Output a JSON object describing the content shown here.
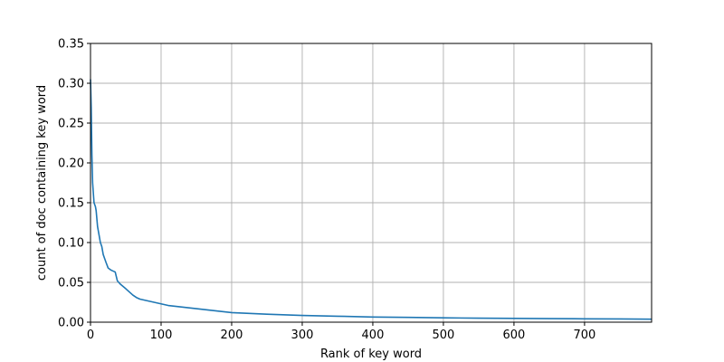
{
  "chart_data": {
    "type": "line",
    "title": "",
    "xlabel": "Rank of key word",
    "ylabel": "count of doc containing key word",
    "xlim": [
      0,
      795
    ],
    "ylim": [
      0,
      0.35
    ],
    "x_ticks": [
      0,
      100,
      200,
      300,
      400,
      500,
      600,
      700
    ],
    "x_tick_labels": [
      "0",
      "100",
      "200",
      "300",
      "400",
      "500",
      "600",
      "700"
    ],
    "y_ticks": [
      0.0,
      0.05,
      0.1,
      0.15,
      0.2,
      0.25,
      0.3,
      0.35
    ],
    "y_tick_labels": [
      "0.00",
      "0.05",
      "0.10",
      "0.15",
      "0.20",
      "0.25",
      "0.30",
      "0.35"
    ],
    "grid": true,
    "legend": "none",
    "series": [
      {
        "color": "#1f77b4",
        "x": [
          0,
          1,
          2,
          3,
          5,
          7,
          8,
          10,
          12,
          14,
          16,
          18,
          20,
          22,
          25,
          28,
          30,
          35,
          38,
          42,
          46,
          50,
          55,
          60,
          65,
          70,
          80,
          90,
          100,
          110,
          120,
          140,
          160,
          180,
          200,
          250,
          300,
          350,
          400,
          450,
          500,
          550,
          600,
          650,
          700,
          750,
          795
        ],
        "y": [
          0.305,
          0.27,
          0.21,
          0.175,
          0.15,
          0.145,
          0.14,
          0.12,
          0.11,
          0.1,
          0.095,
          0.085,
          0.08,
          0.075,
          0.068,
          0.066,
          0.065,
          0.063,
          0.052,
          0.048,
          0.045,
          0.042,
          0.038,
          0.034,
          0.031,
          0.029,
          0.027,
          0.025,
          0.023,
          0.021,
          0.02,
          0.018,
          0.016,
          0.014,
          0.012,
          0.01,
          0.0085,
          0.0075,
          0.0065,
          0.006,
          0.0055,
          0.005,
          0.0047,
          0.0045,
          0.0042,
          0.004,
          0.0038
        ]
      }
    ]
  }
}
